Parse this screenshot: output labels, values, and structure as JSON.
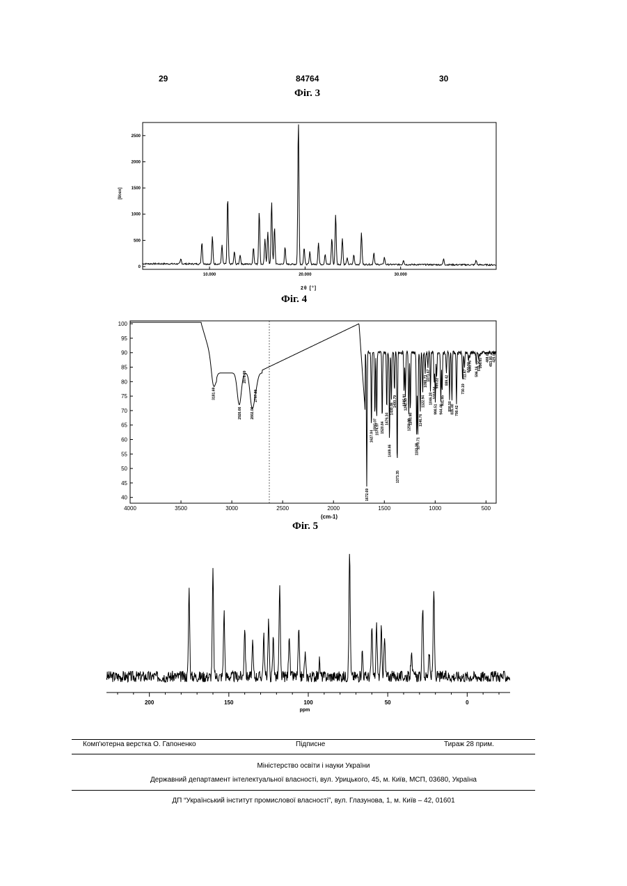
{
  "header": {
    "left_page": "29",
    "patent_number": "84764",
    "right_page": "30"
  },
  "figures": {
    "fig3_label": "Фіг. 3",
    "fig4_label": "Фіг. 4",
    "fig5_label": "Фіг. 5"
  },
  "chart_data": [
    {
      "type": "line",
      "ylabel": "[I/cex]",
      "xlabel": "2θ [°]",
      "yticks": [
        "2500",
        "2000",
        "1500",
        "1000",
        "500",
        "0"
      ],
      "xticks": [
        "10.000",
        "20.000",
        "30.000"
      ],
      "xlim": [
        3,
        40
      ],
      "ylim": [
        0,
        2750
      ],
      "peaks": [
        [
          7.0,
          90
        ],
        [
          9.2,
          420
        ],
        [
          10.3,
          520
        ],
        [
          11.3,
          360
        ],
        [
          11.9,
          1270
        ],
        [
          12.6,
          240
        ],
        [
          13.2,
          180
        ],
        [
          14.6,
          320
        ],
        [
          15.2,
          1020
        ],
        [
          15.8,
          480
        ],
        [
          16.1,
          620
        ],
        [
          16.5,
          1200
        ],
        [
          16.8,
          700
        ],
        [
          17.9,
          330
        ],
        [
          19.3,
          2750
        ],
        [
          19.9,
          320
        ],
        [
          20.5,
          240
        ],
        [
          21.4,
          420
        ],
        [
          22.1,
          200
        ],
        [
          22.8,
          500
        ],
        [
          23.2,
          950
        ],
        [
          23.9,
          510
        ],
        [
          24.4,
          120
        ],
        [
          25.1,
          180
        ],
        [
          25.9,
          600
        ],
        [
          27.2,
          230
        ],
        [
          28.3,
          140
        ],
        [
          30.3,
          90
        ],
        [
          34.5,
          110
        ],
        [
          37.9,
          90
        ]
      ]
    },
    {
      "type": "line",
      "xlabel": "(cm-1)",
      "yticks": [
        "100",
        "95",
        "90",
        "85",
        "80",
        "75",
        "70",
        "65",
        "60",
        "55",
        "50",
        "45",
        "40"
      ],
      "xticks": [
        "4000",
        "3500",
        "3000",
        "2500",
        "2000",
        "1500",
        "1000",
        "500"
      ],
      "xlim": [
        4000,
        400
      ],
      "ylim": [
        38,
        101
      ],
      "bands": [
        [
          3181.68,
          78.7
        ],
        [
          2926.66,
          72
        ],
        [
          2876.38,
          84.5
        ],
        [
          2802.06,
          72
        ],
        [
          2767.88,
          78
        ],
        [
          1672.69,
          43.8
        ],
        [
          1627.04,
          64
        ],
        [
          1593.07,
          68
        ],
        [
          1574.97,
          66.5
        ],
        [
          1520.84,
          67
        ],
        [
          1476.34,
          70
        ],
        [
          1449.45,
          59
        ],
        [
          1430.46,
          73.5
        ],
        [
          1400.79,
          76
        ],
        [
          1373.35,
          50
        ],
        [
          1305.91,
          76.5
        ],
        [
          1292.5,
          75
        ],
        [
          1259.99,
          68
        ],
        [
          1243.98,
          70
        ],
        [
          1182.38,
          59.5
        ],
        [
          1170.71,
          61.5
        ],
        [
          1146.76,
          69.5
        ],
        [
          1122.94,
          76
        ],
        [
          1098.73,
          83
        ],
        [
          1071.67,
          85
        ],
        [
          1046.28,
          77
        ],
        [
          1010.04,
          79
        ],
        [
          998.51,
          73
        ],
        [
          985.22,
          82
        ],
        [
          944.46,
          73
        ],
        [
          931.65,
          76
        ],
        [
          889.42,
          83
        ],
        [
          858.5,
          74
        ],
        [
          835.4,
          73
        ],
        [
          790.42,
          72.5
        ],
        [
          730,
          80
        ],
        [
          711.67,
          85
        ],
        [
          672.52,
          87.5
        ],
        [
          660.78,
          88
        ],
        [
          596.16,
          86
        ],
        [
          571.26,
          88
        ],
        [
          556.85,
          89
        ],
        [
          488.62,
          91
        ],
        [
          453.95,
          89.5
        ],
        [
          425.02,
          91
        ]
      ],
      "band_labels": [
        "3181.69",
        "2926.66",
        "2876.39",
        "2802.06",
        "2767.89",
        "1672.69",
        "1627.04",
        "1593.07",
        "1574.97",
        "1520.84",
        "1476.34",
        "1449.46",
        "1430.46",
        "1400.79",
        "1373.35",
        "1305.91",
        "1292.50",
        "1259.99",
        "1243.98",
        "1182.38",
        "1170.71",
        "1146.76",
        "1122.94",
        "1098.73",
        "1071.67",
        "1046.28",
        "1010.04",
        "998.51",
        "985.22",
        "944.46",
        "931.65",
        "889.42",
        "858.50",
        "835.40",
        "790.42",
        "730.19",
        "711.67",
        "672.52",
        "660.78",
        "596.16",
        "571.26",
        "556.85",
        "488.62",
        "453.95",
        "425.02"
      ]
    },
    {
      "type": "line",
      "xlabel": "ppm",
      "xticks": [
        "200",
        "150",
        "100",
        "50",
        "0"
      ],
      "xlim": [
        227,
        -27
      ],
      "ylim": [
        0,
        100
      ],
      "peaks": [
        [
          175,
          70
        ],
        [
          160,
          83
        ],
        [
          153,
          52
        ],
        [
          140,
          40
        ],
        [
          135,
          25
        ],
        [
          128,
          32
        ],
        [
          125,
          45
        ],
        [
          122,
          32
        ],
        [
          118,
          70
        ],
        [
          112,
          35
        ],
        [
          106,
          35
        ],
        [
          102,
          18
        ],
        [
          93,
          12
        ],
        [
          74,
          100
        ],
        [
          66,
          20
        ],
        [
          60,
          38
        ],
        [
          57,
          40
        ],
        [
          54,
          38
        ],
        [
          52,
          30
        ],
        [
          35,
          23
        ],
        [
          28,
          55
        ],
        [
          24,
          20
        ],
        [
          21,
          70
        ]
      ]
    }
  ],
  "footer": {
    "typesetting": "Комп'ютерна верстка О. Гапоненко",
    "signed": "Підписне",
    "circulation": "Тираж 28 прим.",
    "ministry": "Міністерство освіти і науки України",
    "department": "Державний департамент інтелектуальної власності, вул. Урицького, 45, м. Київ, МСП, 03680, Україна",
    "institute": "ДП “Український інститут промислової власності”, вул. Глазунова, 1, м. Київ – 42, 01601"
  }
}
